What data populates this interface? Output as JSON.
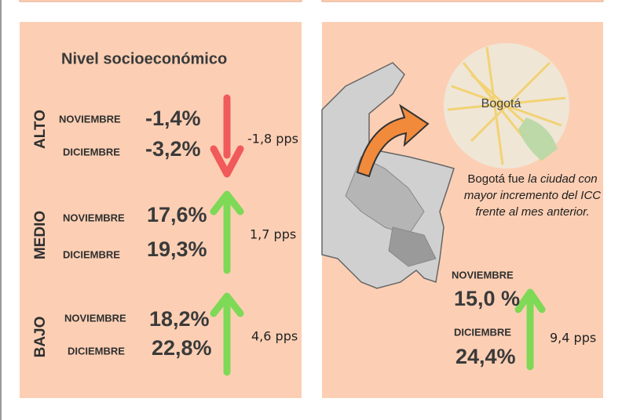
{
  "left": {
    "title": "Nivel socioeconómico",
    "levels": [
      {
        "label": "ALTO",
        "rows": [
          {
            "month": "NOVIEMBRE",
            "value": "-1,4%"
          },
          {
            "month": "DICIEMBRE",
            "value": "-3,2%"
          }
        ],
        "change": "-1,8 pps"
      },
      {
        "label": "MEDIO",
        "rows": [
          {
            "month": "NOVIEMBRE",
            "value": "17,6%"
          },
          {
            "month": "DICIEMBRE",
            "value": "19,3%"
          }
        ],
        "change": "1,7 pps"
      },
      {
        "label": "BAJO",
        "rows": [
          {
            "month": "NOVIEMBRE",
            "value": "18,2%"
          },
          {
            "month": "DICIEMBRE",
            "value": "22,8%"
          }
        ],
        "change": "4,6 pps"
      }
    ]
  },
  "right": {
    "map_label": "Bogotá",
    "caption_lead": "Bogotá fue",
    "caption_rest": "la ciudad con mayor incremento del ICC frente al mes anterior.",
    "rows": [
      {
        "month": "NOVIEMBRE",
        "value": "15,0 %"
      },
      {
        "month": "DICIEMBRE",
        "value": "24,4%"
      }
    ],
    "change": "9,4 pps"
  }
}
